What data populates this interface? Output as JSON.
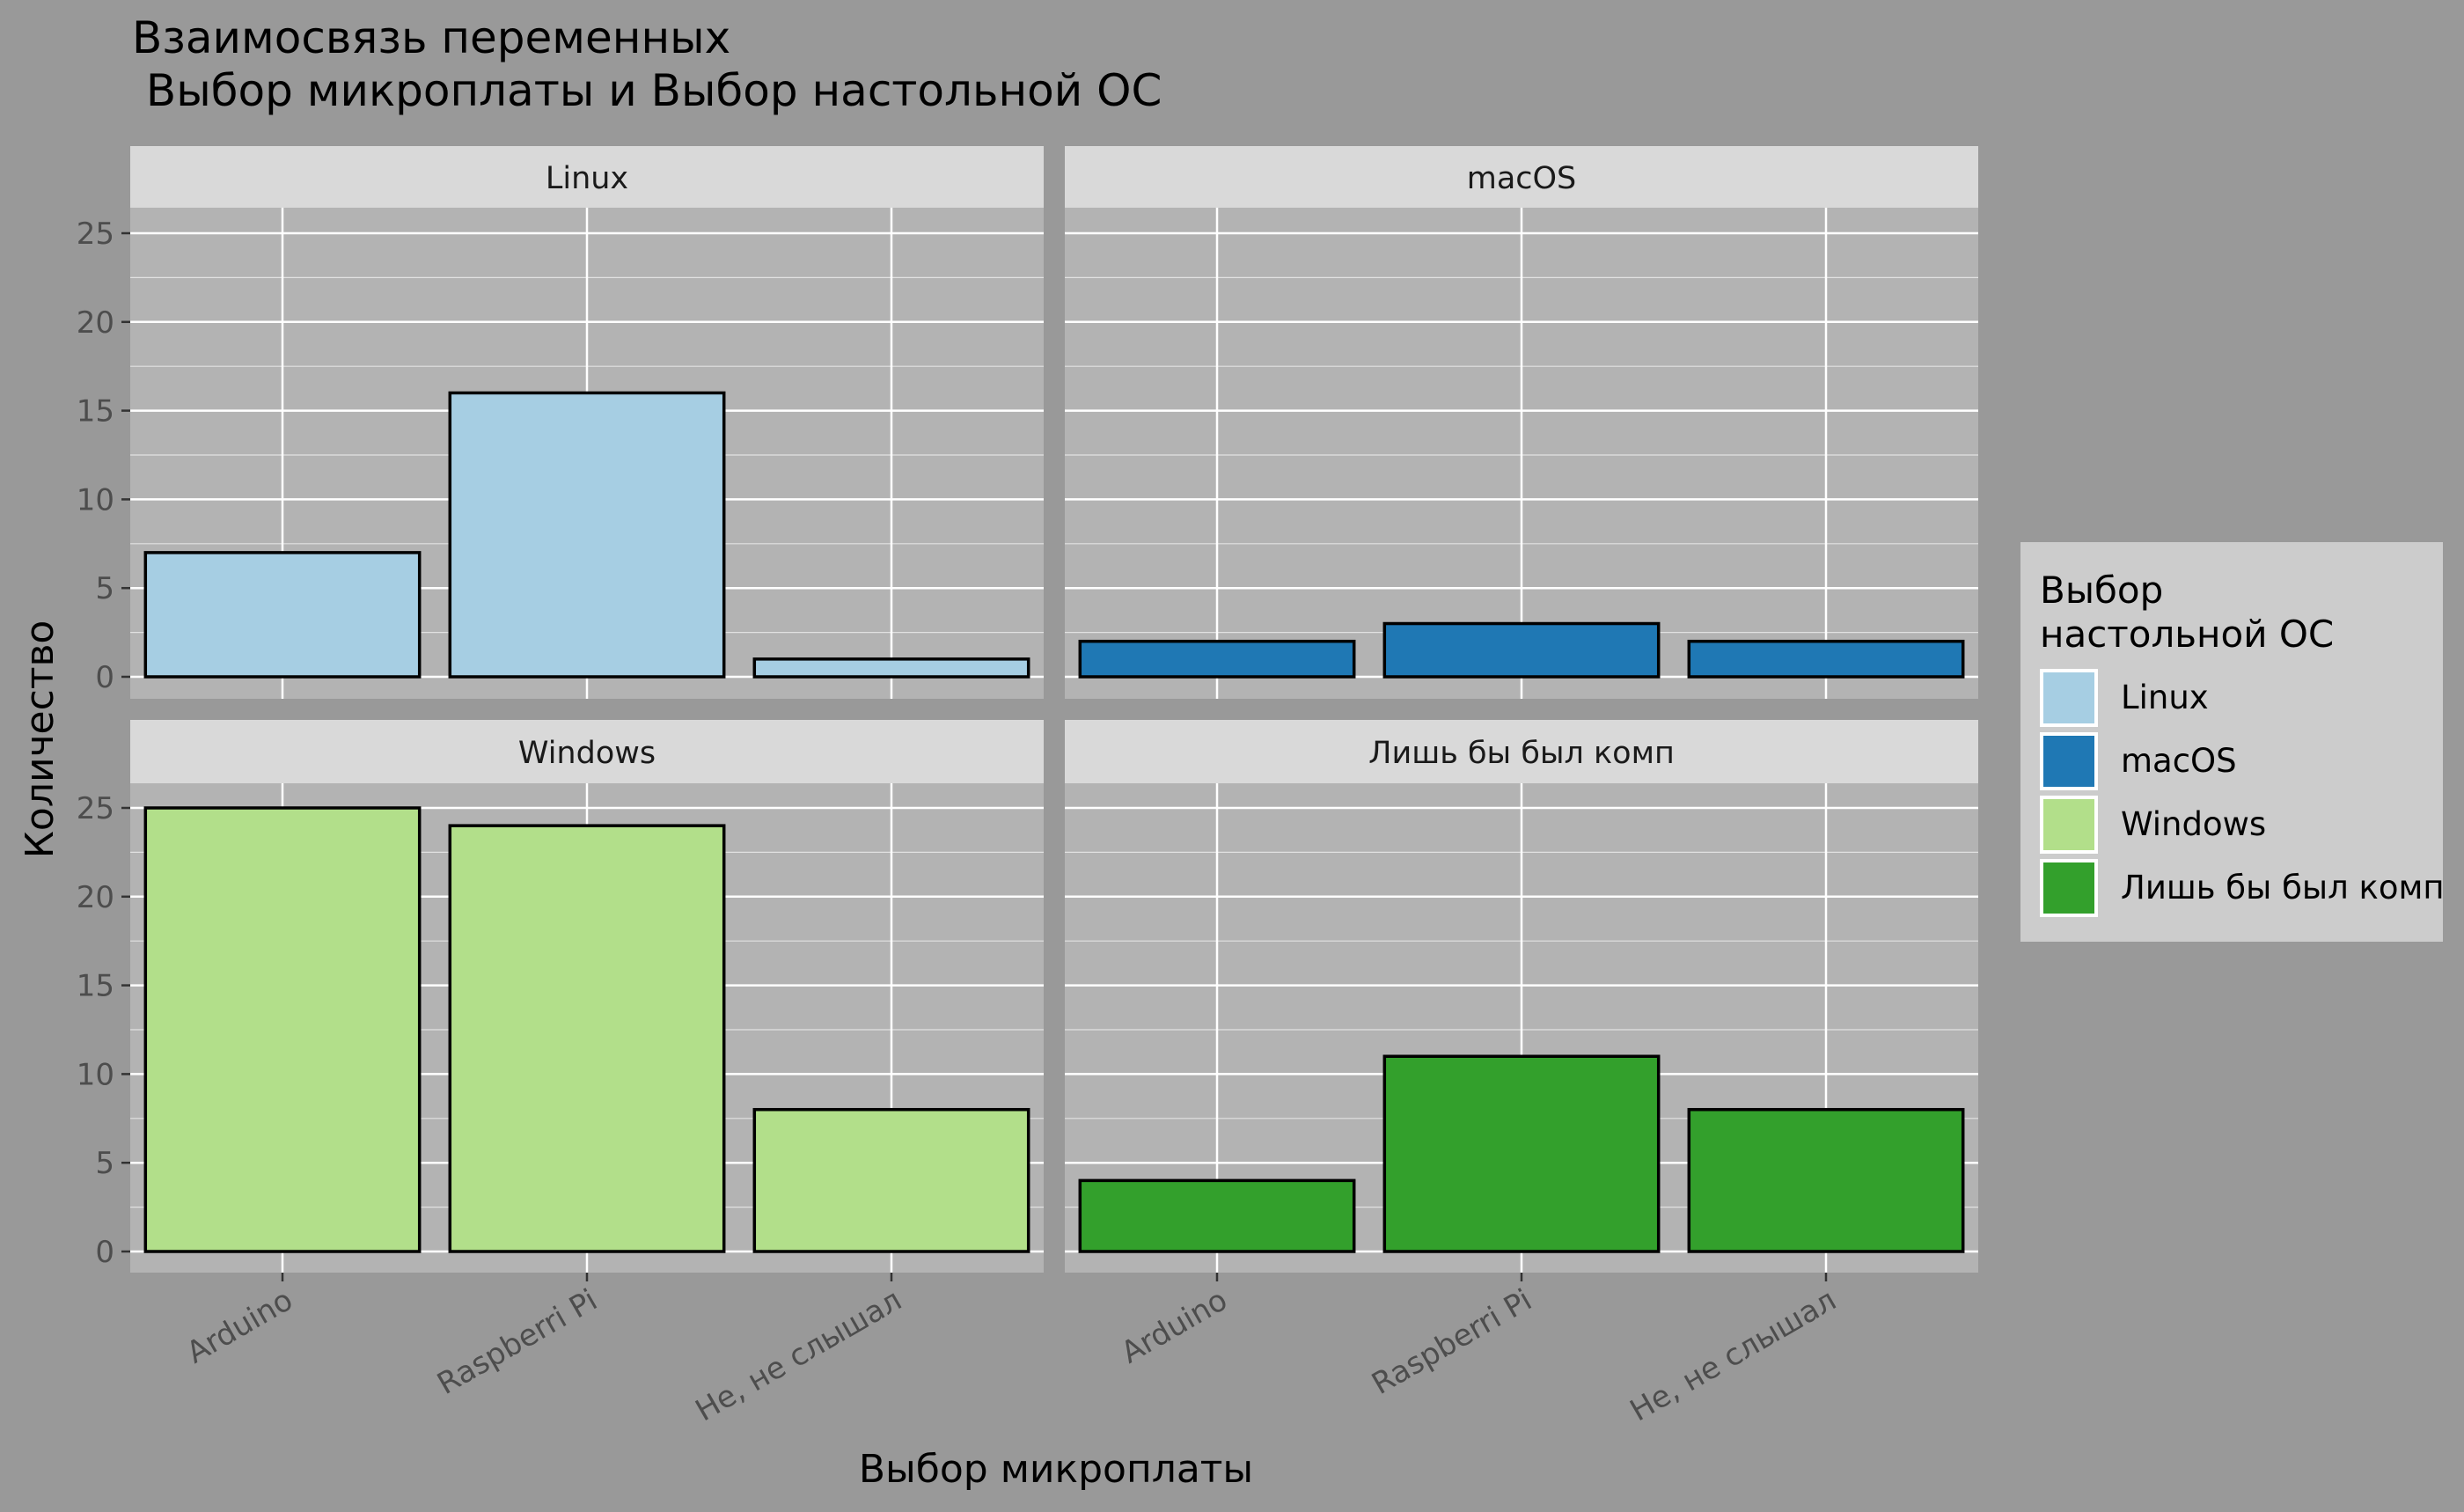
{
  "title_lines": [
    "Взаимосвязь переменных",
    " Выбор микроплаты и Выбор настольной ОС"
  ],
  "legend": {
    "title_lines": [
      "Выбор",
      "настольной ОС"
    ],
    "items": [
      {
        "label": "Linux",
        "color": "#a6cee3"
      },
      {
        "label": "macOS",
        "color": "#1f78b4"
      },
      {
        "label": "Windows",
        "color": "#b2df8a"
      },
      {
        "label": "Лишь бы был комп",
        "color": "#33a02c"
      }
    ]
  },
  "chart_data": {
    "type": "bar",
    "title": "Взаимосвязь переменных\n Выбор микроплаты и Выбор настольной ОС",
    "xlabel": "Выбор микроплаты",
    "ylabel": "Количество",
    "categories": [
      "Arduino",
      "Raspberri Pi",
      "Не, не слышал"
    ],
    "ylim": [
      0,
      25
    ],
    "yticks": [
      0,
      5,
      10,
      15,
      20,
      25
    ],
    "grid": true,
    "legend_position": "right",
    "facets": [
      {
        "label": "Linux",
        "color": "#a6cee3",
        "values": [
          7,
          16,
          1
        ]
      },
      {
        "label": "macOS",
        "color": "#1f78b4",
        "values": [
          2,
          3,
          2
        ]
      },
      {
        "label": "Windows",
        "color": "#b2df8a",
        "values": [
          25,
          24,
          8
        ]
      },
      {
        "label": "Лишь бы был комп",
        "color": "#33a02c",
        "values": [
          4,
          11,
          8
        ]
      }
    ]
  }
}
